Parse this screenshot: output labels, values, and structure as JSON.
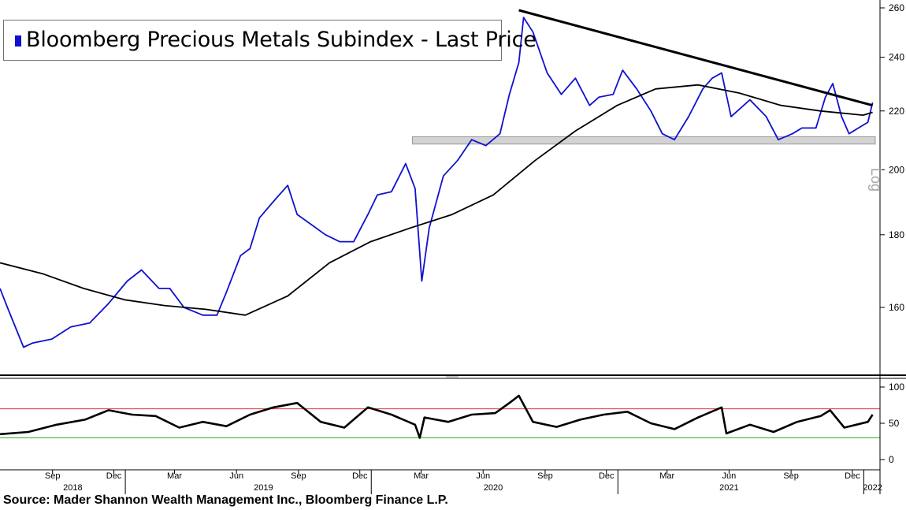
{
  "legend": {
    "text": "Bloomberg Precious Metals Subindex - Last Price",
    "swatch_color": "#1010d0"
  },
  "side_label": "Log",
  "source": "Source: Mader Shannon Wealth Management Inc., Bloomberg Finance L.P.",
  "x_axis": {
    "month_ticks": [
      "Sep",
      "Dec",
      "Mar",
      "Jun",
      "Sep",
      "Dec",
      "Mar",
      "Jun",
      "Sep",
      "Dec",
      "Mar",
      "Jun",
      "Sep",
      "Dec"
    ],
    "year_labels": [
      "2018",
      "2019",
      "2020",
      "2021",
      "2022"
    ]
  },
  "chart_data": [
    {
      "type": "line",
      "title": "Bloomberg Precious Metals Subindex - Last Price",
      "y_scale": "log",
      "ylim": [
        141,
        262
      ],
      "y_ticks": [
        160,
        180,
        200,
        220,
        240,
        260
      ],
      "y_tick_labels": [
        "160",
        "180",
        "200",
        "220",
        "240",
        "260"
      ],
      "series": [
        {
          "name": "Bloomberg Precious Metals Subindex - Last Price",
          "color": "#1010d0",
          "x": [
            "2018-06-29",
            "2018-07-10",
            "2018-08-03",
            "2018-08-16",
            "2018-09-14",
            "2018-10-12",
            "2018-11-09",
            "2018-12-07",
            "2019-01-04",
            "2019-01-25",
            "2019-02-20",
            "2019-03-08",
            "2019-03-29",
            "2019-04-26",
            "2019-05-17",
            "2019-05-31",
            "2019-06-21",
            "2019-07-05",
            "2019-07-19",
            "2019-08-09",
            "2019-08-30",
            "2019-09-13",
            "2019-09-27",
            "2019-10-25",
            "2019-11-15",
            "2019-12-06",
            "2019-12-27",
            "2020-01-10",
            "2020-01-31",
            "2020-02-21",
            "2020-03-06",
            "2020-03-16",
            "2020-03-27",
            "2020-04-17",
            "2020-05-08",
            "2020-05-29",
            "2020-06-19",
            "2020-07-10",
            "2020-07-24",
            "2020-08-07",
            "2020-08-14",
            "2020-08-28",
            "2020-09-18",
            "2020-10-09",
            "2020-10-30",
            "2020-11-20",
            "2020-12-04",
            "2020-12-25",
            "2021-01-08",
            "2021-01-29",
            "2021-02-19",
            "2021-03-08",
            "2021-03-26",
            "2021-04-16",
            "2021-05-07",
            "2021-05-21",
            "2021-06-04",
            "2021-06-18",
            "2021-07-16",
            "2021-08-09",
            "2021-08-27",
            "2021-09-17",
            "2021-10-01",
            "2021-10-22",
            "2021-11-05",
            "2021-11-16",
            "2021-11-29",
            "2021-12-10",
            "2021-12-24",
            "2022-01-07",
            "2022-01-14"
          ],
          "y": [
            165,
            160,
            150,
            151,
            152,
            155,
            156,
            161,
            167,
            170,
            165,
            165,
            160,
            158,
            158,
            164,
            174,
            176,
            185,
            190,
            195,
            186,
            184,
            180,
            178,
            178,
            186,
            192,
            193,
            202,
            194,
            167,
            182,
            198,
            203,
            210,
            208,
            212,
            226,
            238,
            256,
            250,
            234,
            226,
            232,
            222,
            225,
            226,
            235,
            228,
            220,
            212,
            210,
            218,
            228,
            232,
            234,
            218,
            224,
            218,
            210,
            212,
            214,
            214,
            225,
            230,
            218,
            212,
            214,
            216,
            223
          ]
        },
        {
          "name": "",
          "color": "#000000",
          "x": [
            "2018-06-29",
            "2018-08-31",
            "2018-10-31",
            "2018-12-31",
            "2019-02-28",
            "2019-04-30",
            "2019-06-28",
            "2019-08-30",
            "2019-10-31",
            "2019-12-31",
            "2020-02-28",
            "2020-04-30",
            "2020-06-30",
            "2020-08-31",
            "2020-10-30",
            "2020-12-31",
            "2021-02-26",
            "2021-04-30",
            "2021-06-30",
            "2021-08-31",
            "2021-10-29",
            "2021-12-31",
            "2022-01-14"
          ],
          "y": [
            172,
            169,
            165,
            162,
            160.5,
            159.5,
            158,
            163,
            172,
            178,
            182,
            186,
            192,
            203,
            213,
            222,
            228,
            229.5,
            226.5,
            222,
            220,
            218.5,
            219.5
          ]
        },
        {
          "name": "",
          "color": "#000000",
          "x": [
            "2020-08-07",
            "2022-01-14"
          ],
          "y": [
            259,
            222
          ]
        }
      ],
      "annotations": [
        {
          "type": "horizontal_band",
          "y_range": [
            208.5,
            211
          ],
          "color": "#d3d3d3"
        }
      ]
    },
    {
      "type": "line",
      "title": "",
      "ylim": [
        -5,
        105
      ],
      "y_ticks": [
        0,
        50,
        100
      ],
      "y_tick_labels": [
        "0",
        "50",
        "100"
      ],
      "reference_lines": [
        {
          "y": 70,
          "color": "#e03030"
        },
        {
          "y": 30,
          "color": "#20b020"
        }
      ],
      "series": [
        {
          "name": "",
          "color": "#000000",
          "x": [
            "2018-06-29",
            "2018-08-10",
            "2018-09-21",
            "2018-11-02",
            "2018-12-07",
            "2019-01-11",
            "2019-02-15",
            "2019-03-22",
            "2019-04-26",
            "2019-05-31",
            "2019-07-05",
            "2019-08-09",
            "2019-09-13",
            "2019-10-18",
            "2019-11-22",
            "2019-12-27",
            "2020-01-31",
            "2020-03-06",
            "2020-03-13",
            "2020-03-20",
            "2020-04-24",
            "2020-05-29",
            "2020-07-03",
            "2020-07-24",
            "2020-08-07",
            "2020-08-28",
            "2020-10-02",
            "2020-11-06",
            "2020-12-11",
            "2021-01-15",
            "2021-02-19",
            "2021-03-26",
            "2021-04-30",
            "2021-06-04",
            "2021-06-11",
            "2021-07-16",
            "2021-08-20",
            "2021-09-24",
            "2021-10-29",
            "2021-11-12",
            "2021-12-03",
            "2022-01-07",
            "2022-01-14"
          ],
          "y": [
            35,
            38,
            48,
            55,
            68,
            62,
            60,
            44,
            52,
            46,
            62,
            72,
            78,
            52,
            44,
            72,
            62,
            48,
            30,
            58,
            52,
            62,
            64,
            78,
            88,
            52,
            45,
            55,
            62,
            66,
            50,
            42,
            58,
            72,
            36,
            48,
            38,
            52,
            60,
            68,
            44,
            52,
            62
          ]
        }
      ]
    }
  ]
}
